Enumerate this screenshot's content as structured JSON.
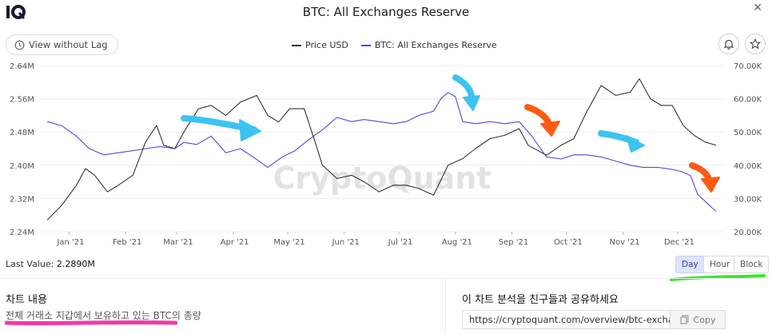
{
  "header": {
    "title": "BTC: All Exchanges Reserve"
  },
  "toolbar": {
    "view_without_lag": "View without Lag"
  },
  "legend": {
    "items": [
      {
        "label": "Price USD",
        "color": "#333333"
      },
      {
        "label": "BTC: All Exchanges Reserve",
        "color": "#5b45d6"
      }
    ]
  },
  "footer": {
    "last_value_label": "Last Value:",
    "last_value": "2.2890M",
    "periods": [
      "Day",
      "Hour",
      "Block"
    ],
    "active_period": "Day"
  },
  "content_section": {
    "title": "차트 내용",
    "text": "전체 거래소 지갑에서 보유하고 있는 BTC의 총량"
  },
  "share_section": {
    "title": "이 차트 분석을 친구들과 공유하세요",
    "url": "https://cryptoquant.com/overview/btc-exchang",
    "copy_label": "Copy"
  },
  "watermark": "CryptoQuant",
  "chart_data": {
    "type": "line",
    "title": "BTC: All Exchanges Reserve",
    "x_ticks": [
      "Jan '21",
      "Feb '21",
      "Mar '21",
      "Apr '21",
      "May '21",
      "Jun '21",
      "Jul '21",
      "Aug '21",
      "Sep '21",
      "Oct '21",
      "Nov '21",
      "Dec '21"
    ],
    "y_left": {
      "ticks": [
        "2.24M",
        "2.32M",
        "2.40M",
        "2.48M",
        "2.56M",
        "2.64M"
      ],
      "range": [
        2.24,
        2.64
      ],
      "unit": "M"
    },
    "y_right": {
      "ticks": [
        "20.00K",
        "30.00K",
        "40.00K",
        "50.00K",
        "60.00K",
        "70.00K"
      ],
      "range": [
        20,
        70
      ],
      "unit": "K"
    },
    "grid": true,
    "series": [
      {
        "name": "BTC: All Exchanges Reserve",
        "axis": "left",
        "color": "#5b45d6",
        "x": [
          "2020-12-20",
          "2020-12-28",
          "2021-01-05",
          "2021-01-12",
          "2021-01-20",
          "2021-01-28",
          "2021-02-05",
          "2021-02-12",
          "2021-02-20",
          "2021-02-28",
          "2021-03-05",
          "2021-03-12",
          "2021-03-20",
          "2021-03-28",
          "2021-04-05",
          "2021-04-12",
          "2021-04-20",
          "2021-04-28",
          "2021-05-05",
          "2021-05-12",
          "2021-05-20",
          "2021-05-28",
          "2021-06-05",
          "2021-06-12",
          "2021-06-20",
          "2021-06-28",
          "2021-07-05",
          "2021-07-12",
          "2021-07-20",
          "2021-07-24",
          "2021-07-28",
          "2021-08-01",
          "2021-08-05",
          "2021-08-12",
          "2021-08-20",
          "2021-08-28",
          "2021-09-05",
          "2021-09-12",
          "2021-09-20",
          "2021-09-28",
          "2021-10-05",
          "2021-10-12",
          "2021-10-20",
          "2021-10-28",
          "2021-11-05",
          "2021-11-12",
          "2021-11-20",
          "2021-11-28",
          "2021-12-03",
          "2021-12-08",
          "2021-12-12",
          "2021-12-18",
          "2021-12-22"
        ],
        "y": [
          2.505,
          2.495,
          2.47,
          2.44,
          2.425,
          2.43,
          2.435,
          2.44,
          2.445,
          2.44,
          2.455,
          2.45,
          2.47,
          2.43,
          2.44,
          2.42,
          2.395,
          2.42,
          2.435,
          2.46,
          2.485,
          2.515,
          2.505,
          2.51,
          2.505,
          2.5,
          2.505,
          2.52,
          2.53,
          2.56,
          2.575,
          2.565,
          2.505,
          2.5,
          2.505,
          2.5,
          2.505,
          2.47,
          2.42,
          2.415,
          2.425,
          2.425,
          2.42,
          2.41,
          2.4,
          2.395,
          2.395,
          2.39,
          2.385,
          2.375,
          2.33,
          2.305,
          2.289
        ]
      },
      {
        "name": "Price USD",
        "axis": "right",
        "color": "#333333",
        "x": [
          "2020-12-20",
          "2020-12-28",
          "2021-01-05",
          "2021-01-10",
          "2021-01-15",
          "2021-01-22",
          "2021-01-28",
          "2021-02-05",
          "2021-02-12",
          "2021-02-18",
          "2021-02-22",
          "2021-02-28",
          "2021-03-05",
          "2021-03-13",
          "2021-03-20",
          "2021-03-28",
          "2021-04-05",
          "2021-04-14",
          "2021-04-20",
          "2021-04-26",
          "2021-05-02",
          "2021-05-10",
          "2021-05-16",
          "2021-05-20",
          "2021-05-28",
          "2021-06-05",
          "2021-06-12",
          "2021-06-20",
          "2021-06-28",
          "2021-07-05",
          "2021-07-12",
          "2021-07-20",
          "2021-07-28",
          "2021-08-05",
          "2021-08-12",
          "2021-08-20",
          "2021-08-28",
          "2021-09-05",
          "2021-09-10",
          "2021-09-20",
          "2021-09-28",
          "2021-10-05",
          "2021-10-12",
          "2021-10-20",
          "2021-10-28",
          "2021-11-05",
          "2021-11-10",
          "2021-11-16",
          "2021-11-22",
          "2021-11-28",
          "2021-12-04",
          "2021-12-10",
          "2021-12-16",
          "2021-12-22"
        ],
        "y": [
          23.5,
          28,
          34,
          39,
          37,
          32,
          34,
          37,
          47,
          52,
          46,
          45,
          50,
          57,
          58,
          55,
          59,
          61,
          55,
          53,
          57,
          57,
          47,
          40,
          36,
          37,
          35,
          32,
          34,
          34,
          33,
          31,
          40,
          42,
          45,
          48,
          49,
          51,
          46,
          43,
          46,
          48,
          56,
          64,
          61,
          62,
          66,
          60,
          58,
          58,
          52,
          49,
          47,
          46
        ]
      }
    ],
    "annotations": [
      {
        "type": "arrow",
        "color": "#3cc3f2",
        "label": ""
      },
      {
        "type": "arrow",
        "color": "#3cc3f2",
        "label": ""
      },
      {
        "type": "arrow",
        "color": "#ff5a12",
        "label": ""
      },
      {
        "type": "arrow",
        "color": "#3cc3f2",
        "label": ""
      },
      {
        "type": "arrow",
        "color": "#ff5a12",
        "label": ""
      }
    ]
  }
}
